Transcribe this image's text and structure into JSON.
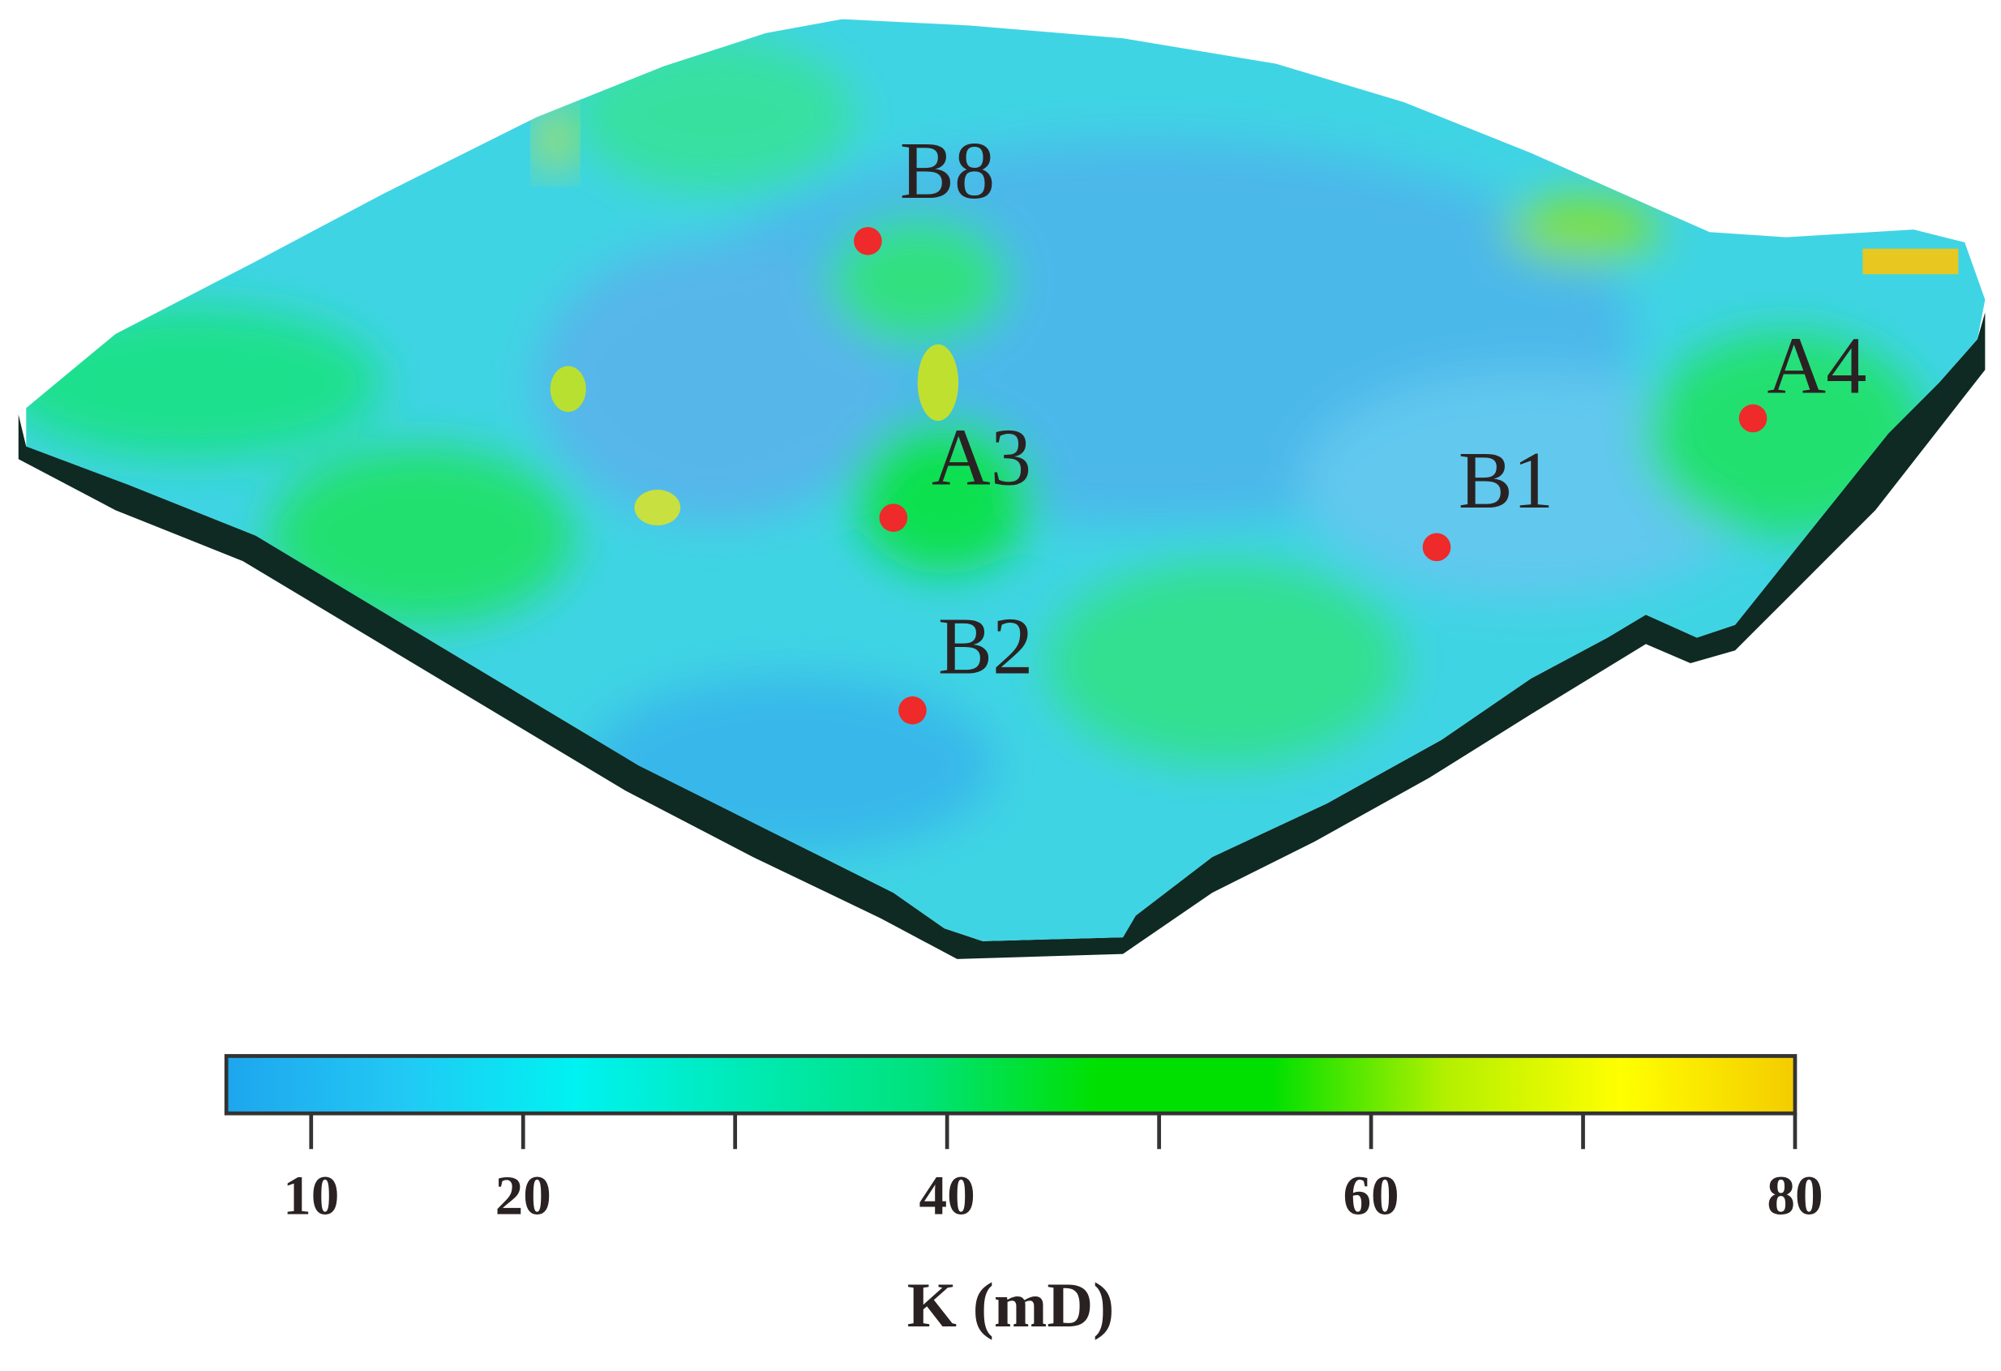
{
  "wells": [
    {
      "label": "B8"
    },
    {
      "label": "A3"
    },
    {
      "label": "B2"
    },
    {
      "label": "B1"
    },
    {
      "label": "A4"
    }
  ],
  "colorbar": {
    "label": "K (mD)",
    "lim": [
      6,
      80
    ],
    "ticks": [
      10,
      20,
      40,
      60,
      80
    ],
    "minor_ticks": [
      30,
      50,
      70
    ],
    "colors": [
      "#1ea6ee",
      "#22c8f4",
      "#00f2f2",
      "#00eab4",
      "#00e27a",
      "#00e000",
      "#00e000",
      "#b4f000",
      "#ffff00",
      "#f4cc00"
    ]
  }
}
